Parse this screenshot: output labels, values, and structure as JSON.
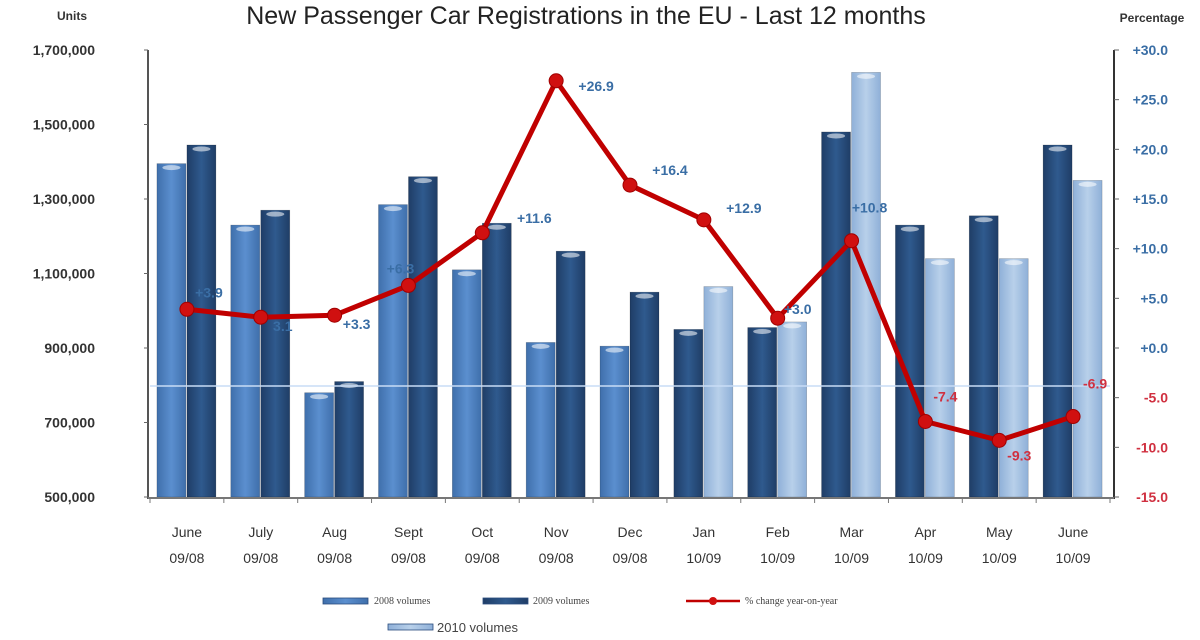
{
  "chart_data": {
    "type": "bar",
    "title": "New Passenger Car Registrations in the EU - Last 12 months",
    "ylabel": "Units",
    "y2label": "Percentage",
    "ylim": [
      500000,
      1700000
    ],
    "y2lim": [
      -15,
      30
    ],
    "yticks": [
      "1,700,000",
      "1,500,000",
      "1,300,000",
      "1,100,000",
      "900,000",
      "700,000",
      "500,000"
    ],
    "ytick_values": [
      1700000,
      1500000,
      1300000,
      1100000,
      900000,
      700000,
      500000
    ],
    "y2ticks": [
      "+30.0",
      "+25.0",
      "+20.0",
      "+15.0",
      "+10.0",
      "+5.0",
      "+0.0",
      "-5.0",
      "-10.0",
      "-15.0"
    ],
    "y2tick_values": [
      30,
      25,
      20,
      15,
      10,
      5,
      0,
      -5,
      -10,
      -15
    ],
    "categories": [
      {
        "month": "June",
        "period": "09/08"
      },
      {
        "month": "July",
        "period": "09/08"
      },
      {
        "month": "Aug",
        "period": "09/08"
      },
      {
        "month": "Sept",
        "period": "09/08"
      },
      {
        "month": "Oct",
        "period": "09/08"
      },
      {
        "month": "Nov",
        "period": "09/08"
      },
      {
        "month": "Dec",
        "period": "09/08"
      },
      {
        "month": "Jan",
        "period": "10/09"
      },
      {
        "month": "Feb",
        "period": "10/09"
      },
      {
        "month": "Mar",
        "period": "10/09"
      },
      {
        "month": "Apr",
        "period": "10/09"
      },
      {
        "month": "May",
        "period": "10/09"
      },
      {
        "month": "June",
        "period": "10/09"
      }
    ],
    "series": [
      {
        "name": "2008 volumes",
        "type": "bar",
        "color": "#4f81bd",
        "values": [
          1395000,
          1230000,
          780000,
          1285000,
          1110000,
          915000,
          905000,
          null,
          null,
          null,
          null,
          null,
          null
        ]
      },
      {
        "name": "2009 volumes",
        "type": "bar",
        "color": "#2a4c7d",
        "values": [
          1445000,
          1270000,
          810000,
          1360000,
          1235000,
          1160000,
          1050000,
          950000,
          955000,
          1480000,
          1230000,
          1255000,
          1445000
        ]
      },
      {
        "name": "2010 volumes",
        "type": "bar",
        "color": "#a9c4e3",
        "values": [
          null,
          null,
          null,
          null,
          null,
          null,
          null,
          1065000,
          970000,
          1640000,
          1140000,
          1140000,
          1350000
        ]
      },
      {
        "name": "% change year-on-year",
        "type": "line",
        "axis": "right",
        "color": "#c00000",
        "values": [
          3.9,
          3.1,
          3.3,
          6.3,
          11.6,
          26.9,
          16.4,
          12.9,
          3.0,
          10.8,
          -7.4,
          -9.3,
          -6.9
        ],
        "labels": [
          "+3.9",
          "3.1",
          "+3.3",
          "+6.3",
          "+11.6",
          "+26.9",
          "+16.4",
          "+12.9",
          "+3.0",
          "+10.8",
          "-7.4",
          "-9.3",
          "-6.9"
        ]
      }
    ],
    "legend": {
      "placement": "bottom",
      "entries": [
        "2008 volumes",
        "2009 volumes",
        "% change year-on-year",
        "2010 volumes"
      ]
    },
    "colors": {
      "positive_label": "#3a6ea5",
      "negative_label": "#d03040",
      "right_positive_tick": "#3a6ea5",
      "right_negative_tick": "#d03040"
    },
    "grid": false
  }
}
